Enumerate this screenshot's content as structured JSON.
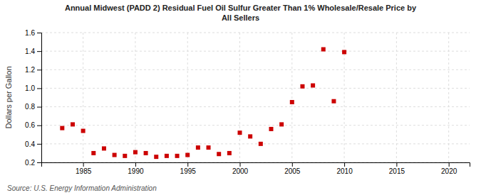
{
  "chart_data": {
    "type": "scatter",
    "title": "Annual Midwest (PADD 2) Residual Fuel Oil Sulfur Greater Than 1% Wholesale/Resale Price by\nAll Sellers",
    "y_label": "Dollars per Gallon",
    "annotations": [
      "Source: U.S. Energy Information Administration"
    ],
    "x": [
      1983,
      1984,
      1985,
      1986,
      1987,
      1988,
      1989,
      1990,
      1991,
      1992,
      1993,
      1994,
      1995,
      1996,
      1997,
      1998,
      1999,
      2000,
      2001,
      2002,
      2003,
      2004,
      2005,
      2006,
      2007,
      2008,
      2009,
      2010
    ],
    "values": [
      0.57,
      0.61,
      0.54,
      0.3,
      0.35,
      0.28,
      0.27,
      0.31,
      0.3,
      0.26,
      0.27,
      0.27,
      0.28,
      0.36,
      0.36,
      0.29,
      0.3,
      0.52,
      0.48,
      0.4,
      0.56,
      0.61,
      0.85,
      1.02,
      1.03,
      1.42,
      0.86,
      1.39
    ],
    "color": "#cc0000",
    "marker": "square",
    "xlim": [
      1981,
      2022
    ],
    "ylim": [
      0.2,
      1.6
    ],
    "xticks": [
      1985,
      1990,
      1995,
      2000,
      2005,
      2010,
      2015,
      2020
    ],
    "yticks": [
      0.2,
      0.4,
      0.6,
      0.8,
      {
        "value": 1.0,
        "label": "1.0"
      },
      1.2,
      1.4,
      1.6
    ],
    "grid": true
  }
}
